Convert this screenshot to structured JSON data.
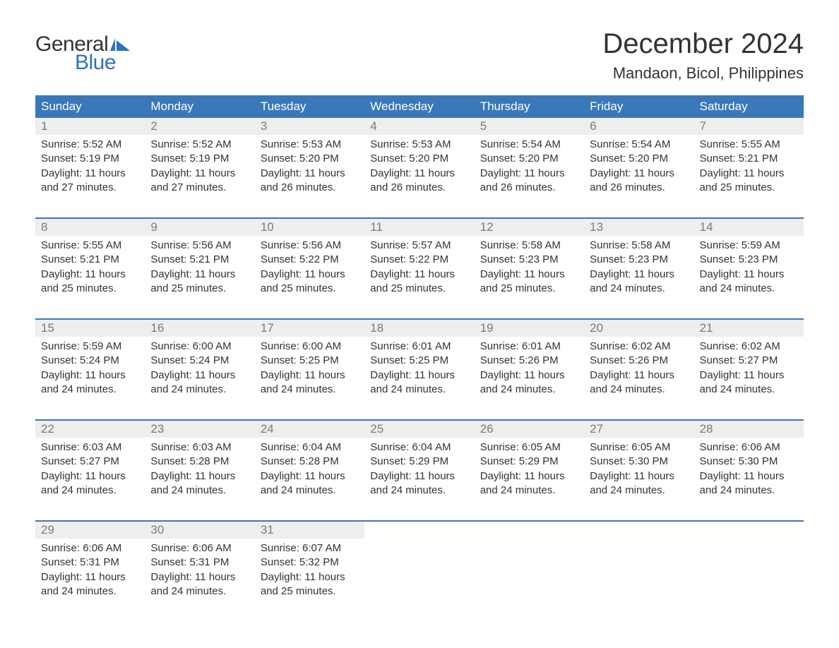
{
  "logo": {
    "text_general": "General",
    "text_blue": "Blue",
    "flag_color": "#2e72b8"
  },
  "title": "December 2024",
  "location": "Mandaon, Bicol, Philippines",
  "colors": {
    "header_bg": "#3a78b9",
    "header_text": "#ffffff",
    "daynum_bg": "#eeeeee",
    "daynum_text": "#7a7a7a",
    "body_text": "#333333",
    "rule": "#3a78b9",
    "brand_blue": "#2e72b8"
  },
  "typography": {
    "title_fontsize": 40,
    "location_fontsize": 22,
    "header_fontsize": 17,
    "daynum_fontsize": 17,
    "body_fontsize": 15
  },
  "weekdays": [
    "Sunday",
    "Monday",
    "Tuesday",
    "Wednesday",
    "Thursday",
    "Friday",
    "Saturday"
  ],
  "weeks": [
    [
      {
        "n": "1",
        "sunrise": "5:52 AM",
        "sunset": "5:19 PM",
        "daylight": "11 hours and 27 minutes."
      },
      {
        "n": "2",
        "sunrise": "5:52 AM",
        "sunset": "5:19 PM",
        "daylight": "11 hours and 27 minutes."
      },
      {
        "n": "3",
        "sunrise": "5:53 AM",
        "sunset": "5:20 PM",
        "daylight": "11 hours and 26 minutes."
      },
      {
        "n": "4",
        "sunrise": "5:53 AM",
        "sunset": "5:20 PM",
        "daylight": "11 hours and 26 minutes."
      },
      {
        "n": "5",
        "sunrise": "5:54 AM",
        "sunset": "5:20 PM",
        "daylight": "11 hours and 26 minutes."
      },
      {
        "n": "6",
        "sunrise": "5:54 AM",
        "sunset": "5:20 PM",
        "daylight": "11 hours and 26 minutes."
      },
      {
        "n": "7",
        "sunrise": "5:55 AM",
        "sunset": "5:21 PM",
        "daylight": "11 hours and 25 minutes."
      }
    ],
    [
      {
        "n": "8",
        "sunrise": "5:55 AM",
        "sunset": "5:21 PM",
        "daylight": "11 hours and 25 minutes."
      },
      {
        "n": "9",
        "sunrise": "5:56 AM",
        "sunset": "5:21 PM",
        "daylight": "11 hours and 25 minutes."
      },
      {
        "n": "10",
        "sunrise": "5:56 AM",
        "sunset": "5:22 PM",
        "daylight": "11 hours and 25 minutes."
      },
      {
        "n": "11",
        "sunrise": "5:57 AM",
        "sunset": "5:22 PM",
        "daylight": "11 hours and 25 minutes."
      },
      {
        "n": "12",
        "sunrise": "5:58 AM",
        "sunset": "5:23 PM",
        "daylight": "11 hours and 25 minutes."
      },
      {
        "n": "13",
        "sunrise": "5:58 AM",
        "sunset": "5:23 PM",
        "daylight": "11 hours and 24 minutes."
      },
      {
        "n": "14",
        "sunrise": "5:59 AM",
        "sunset": "5:23 PM",
        "daylight": "11 hours and 24 minutes."
      }
    ],
    [
      {
        "n": "15",
        "sunrise": "5:59 AM",
        "sunset": "5:24 PM",
        "daylight": "11 hours and 24 minutes."
      },
      {
        "n": "16",
        "sunrise": "6:00 AM",
        "sunset": "5:24 PM",
        "daylight": "11 hours and 24 minutes."
      },
      {
        "n": "17",
        "sunrise": "6:00 AM",
        "sunset": "5:25 PM",
        "daylight": "11 hours and 24 minutes."
      },
      {
        "n": "18",
        "sunrise": "6:01 AM",
        "sunset": "5:25 PM",
        "daylight": "11 hours and 24 minutes."
      },
      {
        "n": "19",
        "sunrise": "6:01 AM",
        "sunset": "5:26 PM",
        "daylight": "11 hours and 24 minutes."
      },
      {
        "n": "20",
        "sunrise": "6:02 AM",
        "sunset": "5:26 PM",
        "daylight": "11 hours and 24 minutes."
      },
      {
        "n": "21",
        "sunrise": "6:02 AM",
        "sunset": "5:27 PM",
        "daylight": "11 hours and 24 minutes."
      }
    ],
    [
      {
        "n": "22",
        "sunrise": "6:03 AM",
        "sunset": "5:27 PM",
        "daylight": "11 hours and 24 minutes."
      },
      {
        "n": "23",
        "sunrise": "6:03 AM",
        "sunset": "5:28 PM",
        "daylight": "11 hours and 24 minutes."
      },
      {
        "n": "24",
        "sunrise": "6:04 AM",
        "sunset": "5:28 PM",
        "daylight": "11 hours and 24 minutes."
      },
      {
        "n": "25",
        "sunrise": "6:04 AM",
        "sunset": "5:29 PM",
        "daylight": "11 hours and 24 minutes."
      },
      {
        "n": "26",
        "sunrise": "6:05 AM",
        "sunset": "5:29 PM",
        "daylight": "11 hours and 24 minutes."
      },
      {
        "n": "27",
        "sunrise": "6:05 AM",
        "sunset": "5:30 PM",
        "daylight": "11 hours and 24 minutes."
      },
      {
        "n": "28",
        "sunrise": "6:06 AM",
        "sunset": "5:30 PM",
        "daylight": "11 hours and 24 minutes."
      }
    ],
    [
      {
        "n": "29",
        "sunrise": "6:06 AM",
        "sunset": "5:31 PM",
        "daylight": "11 hours and 24 minutes."
      },
      {
        "n": "30",
        "sunrise": "6:06 AM",
        "sunset": "5:31 PM",
        "daylight": "11 hours and 24 minutes."
      },
      {
        "n": "31",
        "sunrise": "6:07 AM",
        "sunset": "5:32 PM",
        "daylight": "11 hours and 25 minutes."
      },
      null,
      null,
      null,
      null
    ]
  ],
  "labels": {
    "sunrise": "Sunrise: ",
    "sunset": "Sunset: ",
    "daylight": "Daylight: "
  }
}
